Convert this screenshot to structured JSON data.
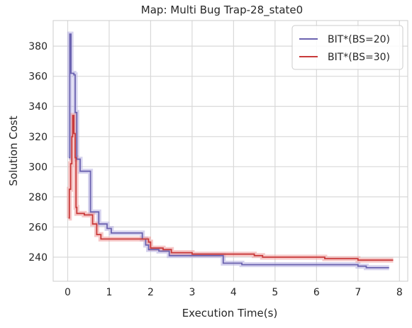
{
  "chart_data": {
    "type": "line",
    "title": "Map: Multi Bug Trap-28_state0",
    "xlabel": "Execution Time(s)",
    "ylabel": "Solution Cost",
    "xlim": [
      -0.35,
      8.2
    ],
    "ylim": [
      224,
      397
    ],
    "xticks": [
      0,
      1,
      2,
      3,
      4,
      5,
      6,
      7,
      8
    ],
    "yticks": [
      240,
      260,
      280,
      300,
      320,
      340,
      360,
      380
    ],
    "grid": true,
    "legend_position": "top-right",
    "background": "#ffffff",
    "grid_color": "#d9d9d9",
    "series": [
      {
        "name": "BIT*(BS=20)",
        "color": "#6b63b0",
        "band_color": "#b5aee0",
        "points": [
          [
            0.03,
            306
          ],
          [
            0.05,
            388
          ],
          [
            0.08,
            362
          ],
          [
            0.15,
            361
          ],
          [
            0.18,
            336
          ],
          [
            0.22,
            305
          ],
          [
            0.3,
            297
          ],
          [
            0.55,
            270
          ],
          [
            0.75,
            262
          ],
          [
            0.95,
            259
          ],
          [
            1.05,
            256
          ],
          [
            1.25,
            256
          ],
          [
            1.8,
            252
          ],
          [
            1.88,
            248
          ],
          [
            1.95,
            245
          ],
          [
            2.2,
            244
          ],
          [
            2.45,
            241
          ],
          [
            3.0,
            241
          ],
          [
            3.75,
            236
          ],
          [
            4.2,
            235
          ],
          [
            5.0,
            235
          ],
          [
            6.0,
            235
          ],
          [
            7.0,
            234
          ],
          [
            7.2,
            233
          ],
          [
            7.75,
            233
          ]
        ]
      },
      {
        "name": "BIT*(BS=30)",
        "color": "#c93a3a",
        "band_color": "#ef9a9a",
        "points": [
          [
            0.02,
            266
          ],
          [
            0.04,
            285
          ],
          [
            0.07,
            302
          ],
          [
            0.1,
            320
          ],
          [
            0.12,
            334
          ],
          [
            0.15,
            322
          ],
          [
            0.18,
            306
          ],
          [
            0.2,
            273
          ],
          [
            0.22,
            269
          ],
          [
            0.4,
            268
          ],
          [
            0.6,
            262
          ],
          [
            0.7,
            255
          ],
          [
            0.8,
            252
          ],
          [
            1.5,
            252
          ],
          [
            1.95,
            250
          ],
          [
            2.0,
            246
          ],
          [
            2.3,
            245
          ],
          [
            2.5,
            243
          ],
          [
            3.0,
            242
          ],
          [
            4.5,
            241
          ],
          [
            4.7,
            240
          ],
          [
            5.6,
            240
          ],
          [
            6.2,
            239
          ],
          [
            7.0,
            238
          ],
          [
            7.85,
            238
          ]
        ]
      }
    ]
  }
}
